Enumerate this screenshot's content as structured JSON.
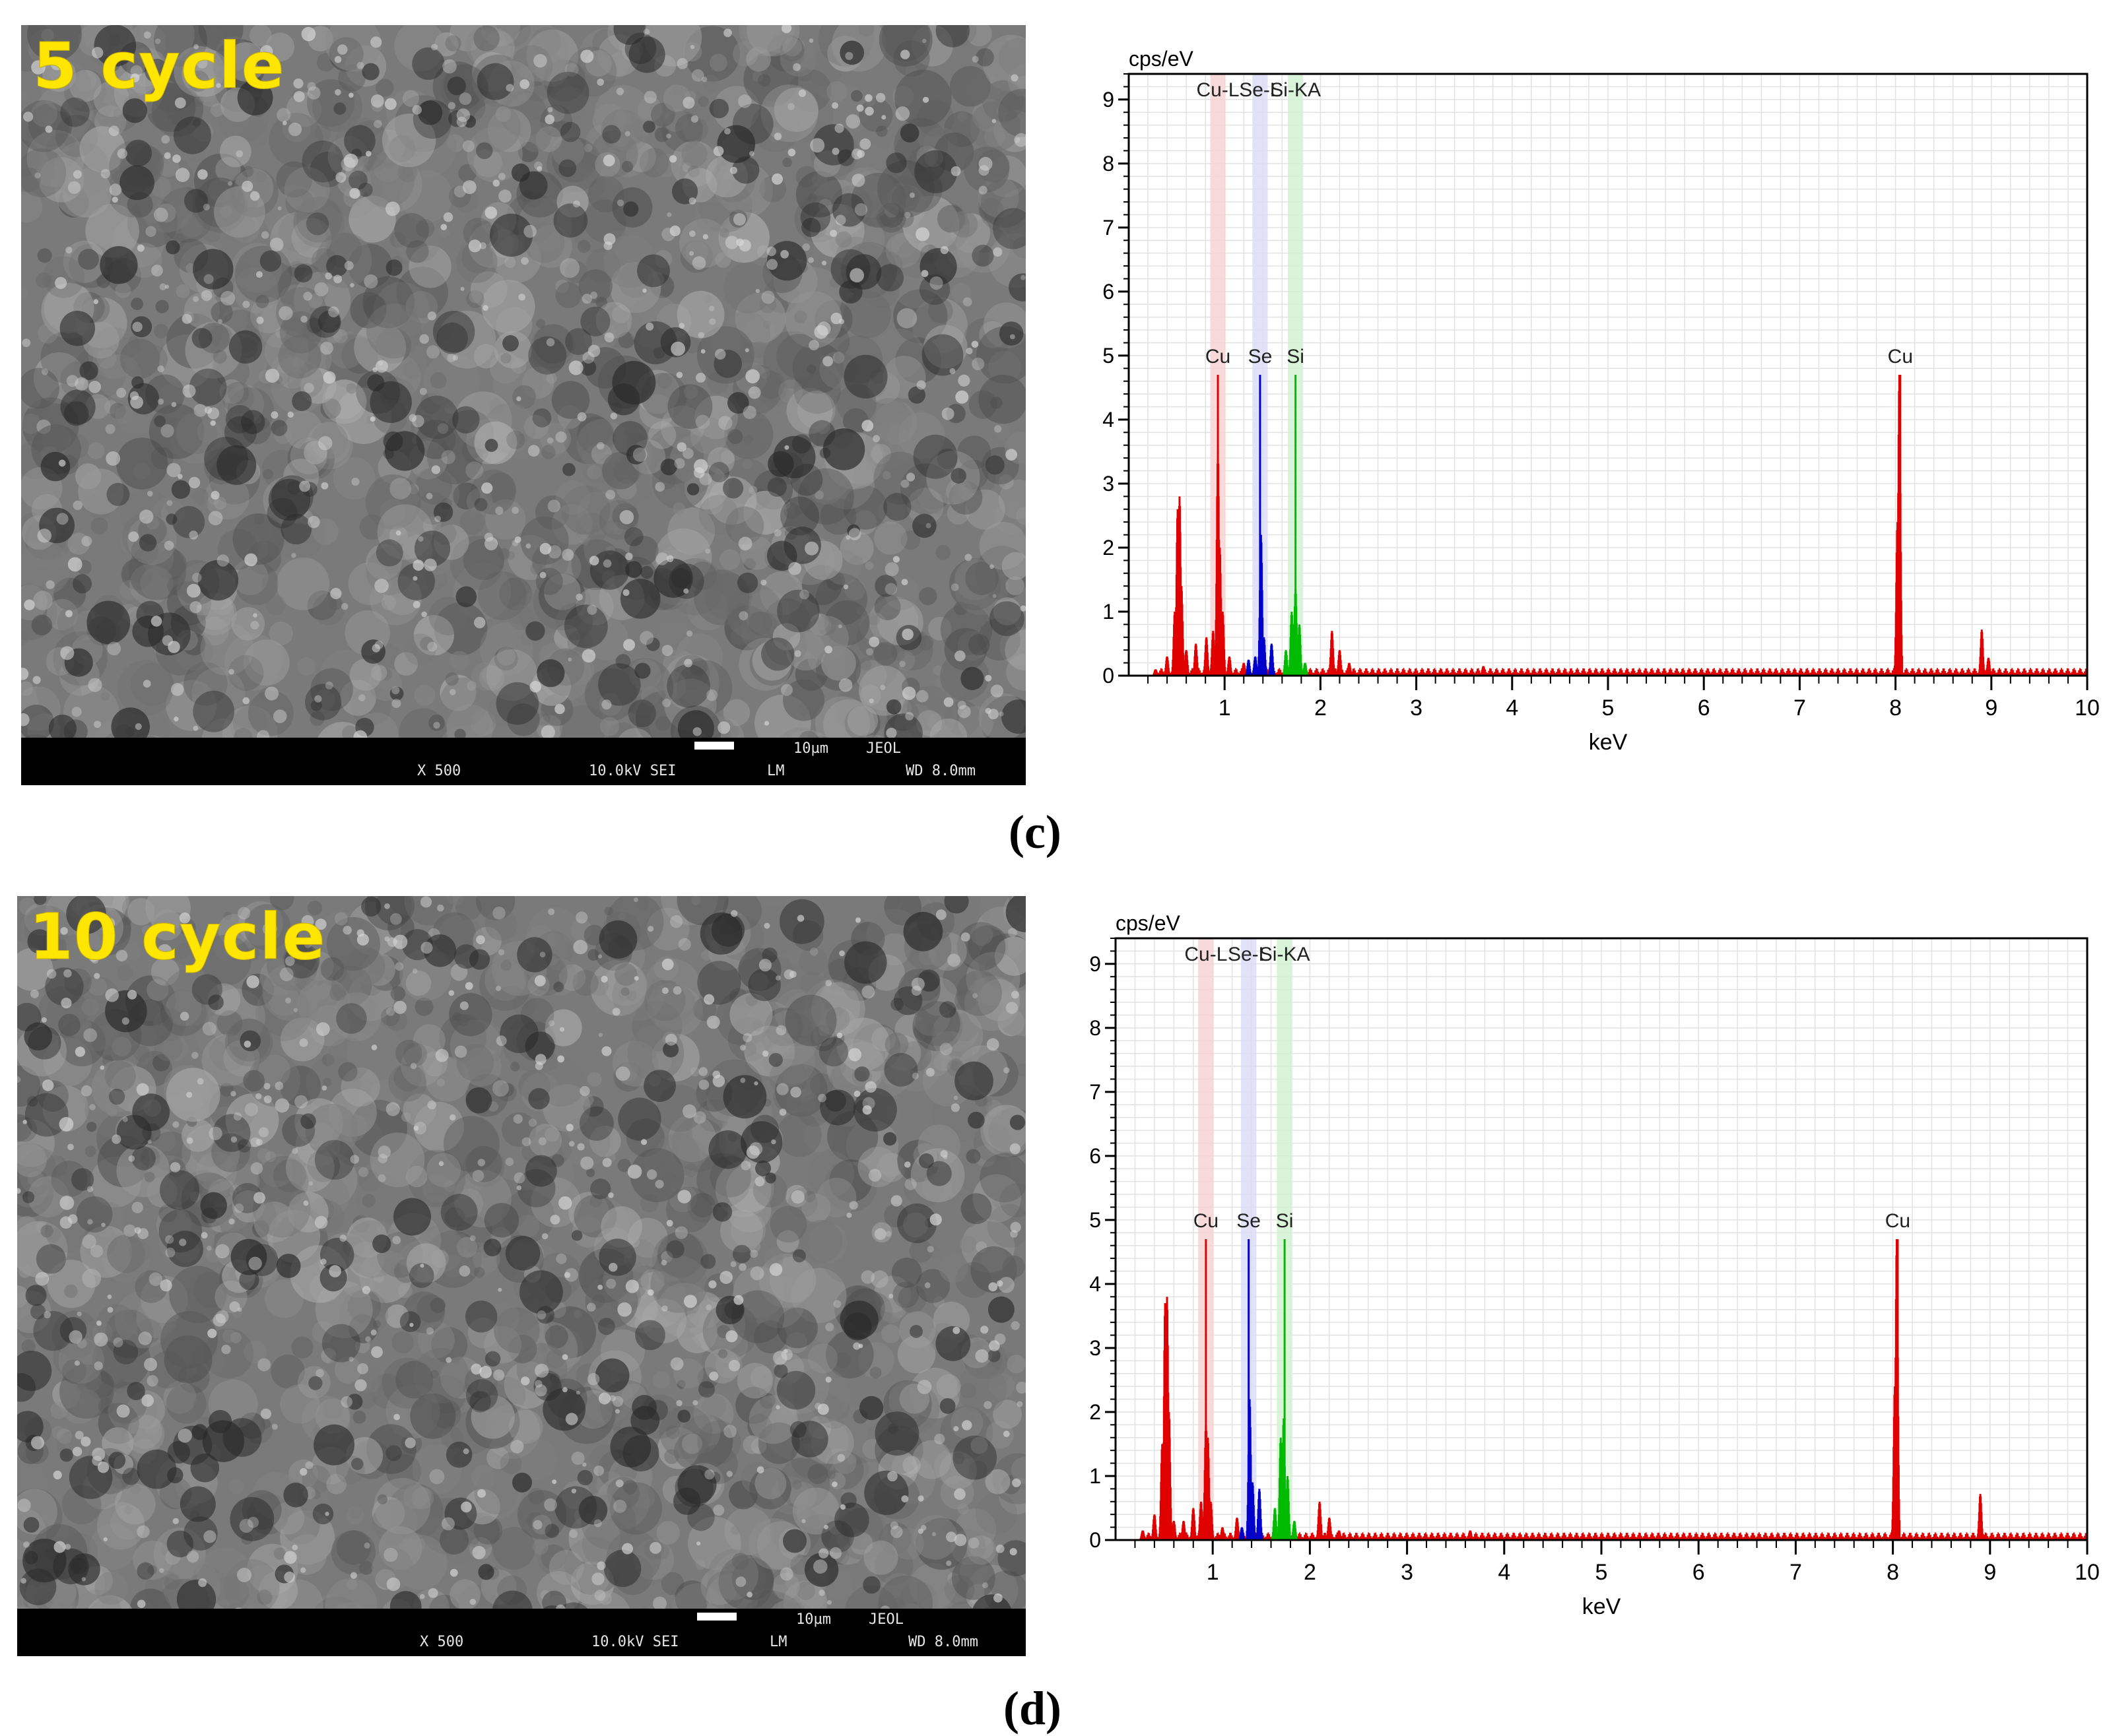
{
  "panels": [
    {
      "id": "c",
      "panel_label": "(c)",
      "sem": {
        "overlay_label": "5 cycle",
        "scale_text": "10µm",
        "brand": "JEOL",
        "magnification": "X 500",
        "voltage": "10.0kV SEI",
        "mode": "LM",
        "working_distance": "WD 8.0mm"
      }
    },
    {
      "id": "d",
      "panel_label": "(d)",
      "sem": {
        "overlay_label": "10 cycle",
        "scale_text": "10µm",
        "brand": "JEOL",
        "magnification": "X 500",
        "voltage": "10.0kV SEI",
        "mode": "LM",
        "working_distance": "WD 8.0mm"
      }
    }
  ],
  "chart_data": [
    {
      "type": "line",
      "panel": "c",
      "ylabel": "cps/eV",
      "xlabel": "keV",
      "xlim": [
        0,
        10
      ],
      "ylim": [
        0,
        9.4
      ],
      "x_ticks": [
        "1",
        "2",
        "3",
        "4",
        "5",
        "6",
        "7",
        "8",
        "9",
        "10"
      ],
      "y_ticks": [
        "0",
        "1",
        "2",
        "3",
        "4",
        "5",
        "6",
        "7",
        "8",
        "9"
      ],
      "grid": true,
      "colors": {
        "Cu": "#e00000",
        "Se": "#0000cc",
        "Si": "#00bb00",
        "Cu_band": "#f8d4d4",
        "Se_band": "#dcdcf6",
        "Si_band": "#d4f2d4"
      },
      "top_line_labels": [
        {
          "text": "Cu-L",
          "x": 0.93,
          "color": "Cu"
        },
        {
          "text": "Se-L",
          "x": 1.37,
          "color": "Se"
        },
        {
          "text": "Si-KA",
          "x": 1.74,
          "color": "Si"
        }
      ],
      "element_bands": [
        {
          "element": "Cu",
          "x0": 0.85,
          "x1": 1.01
        },
        {
          "element": "Se",
          "x0": 1.29,
          "x1": 1.45
        },
        {
          "element": "Si",
          "x0": 1.66,
          "x1": 1.82
        }
      ],
      "marker_lines": [
        {
          "label": "Cu",
          "x": 0.93,
          "y": 4.7,
          "color": "Cu"
        },
        {
          "label": "Se",
          "x": 1.37,
          "y": 4.7,
          "color": "Se"
        },
        {
          "label": "Si",
          "x": 1.74,
          "y": 4.7,
          "color": "Si"
        },
        {
          "label": "Cu",
          "x": 8.05,
          "y": 4.7,
          "color": "Cu"
        }
      ],
      "series": [
        {
          "name": "Cu",
          "color": "Cu",
          "peaks": [
            [
              0.28,
              0.1
            ],
            [
              0.4,
              0.3
            ],
            [
              0.48,
              1.0
            ],
            [
              0.51,
              2.6
            ],
            [
              0.53,
              2.8
            ],
            [
              0.55,
              1.4
            ],
            [
              0.6,
              0.4
            ],
            [
              0.7,
              0.5
            ],
            [
              0.81,
              0.6
            ],
            [
              0.88,
              0.7
            ],
            [
              0.93,
              3.5
            ],
            [
              0.95,
              2.0
            ],
            [
              0.98,
              1.0
            ],
            [
              1.05,
              0.3
            ],
            [
              1.2,
              0.2
            ],
            [
              2.12,
              0.7
            ],
            [
              2.2,
              0.4
            ],
            [
              2.3,
              0.2
            ],
            [
              3.7,
              0.15
            ],
            [
              8.02,
              2.4
            ],
            [
              8.04,
              4.7
            ],
            [
              8.9,
              0.72
            ],
            [
              8.97,
              0.28
            ]
          ],
          "baseline": 0.1
        },
        {
          "name": "Se",
          "color": "Se",
          "peaks": [
            [
              1.25,
              0.25
            ],
            [
              1.32,
              0.3
            ],
            [
              1.38,
              2.2
            ],
            [
              1.41,
              0.6
            ],
            [
              1.49,
              0.5
            ]
          ],
          "baseline": 0.0
        },
        {
          "name": "Si",
          "color": "Si",
          "peaks": [
            [
              1.64,
              0.4
            ],
            [
              1.7,
              1.0
            ],
            [
              1.74,
              1.35
            ],
            [
              1.78,
              0.8
            ],
            [
              1.84,
              0.2
            ]
          ],
          "baseline": 0.0
        }
      ]
    },
    {
      "type": "line",
      "panel": "d",
      "ylabel": "cps/eV",
      "xlabel": "keV",
      "xlim": [
        0,
        10
      ],
      "ylim": [
        0,
        9.4
      ],
      "x_ticks": [
        "1",
        "2",
        "3",
        "4",
        "5",
        "6",
        "7",
        "8",
        "9",
        "10"
      ],
      "y_ticks": [
        "0",
        "1",
        "2",
        "3",
        "4",
        "5",
        "6",
        "7",
        "8",
        "9"
      ],
      "grid": true,
      "colors": {
        "Cu": "#e00000",
        "Se": "#0000cc",
        "Si": "#00bb00",
        "Cu_band": "#f8d4d4",
        "Se_band": "#dcdcf6",
        "Si_band": "#d4f2d4"
      },
      "top_line_labels": [
        {
          "text": "Cu-L",
          "x": 0.93,
          "color": "Cu"
        },
        {
          "text": "Se-L",
          "x": 1.37,
          "color": "Se"
        },
        {
          "text": "Si-KA",
          "x": 1.74,
          "color": "Si"
        }
      ],
      "element_bands": [
        {
          "element": "Cu",
          "x0": 0.85,
          "x1": 1.01
        },
        {
          "element": "Se",
          "x0": 1.29,
          "x1": 1.45
        },
        {
          "element": "Si",
          "x0": 1.66,
          "x1": 1.82
        }
      ],
      "marker_lines": [
        {
          "label": "Cu",
          "x": 0.93,
          "y": 4.7,
          "color": "Cu"
        },
        {
          "label": "Se",
          "x": 1.37,
          "y": 4.7,
          "color": "Se"
        },
        {
          "label": "Si",
          "x": 1.74,
          "y": 4.7,
          "color": "Si"
        },
        {
          "label": "Cu",
          "x": 8.05,
          "y": 4.7,
          "color": "Cu"
        }
      ],
      "series": [
        {
          "name": "Cu",
          "color": "Cu",
          "peaks": [
            [
              0.28,
              0.15
            ],
            [
              0.4,
              0.4
            ],
            [
              0.48,
              1.5
            ],
            [
              0.51,
              3.7
            ],
            [
              0.53,
              3.8
            ],
            [
              0.55,
              2.0
            ],
            [
              0.6,
              0.3
            ],
            [
              0.7,
              0.3
            ],
            [
              0.8,
              0.5
            ],
            [
              0.88,
              0.6
            ],
            [
              0.93,
              1.8
            ],
            [
              0.95,
              1.6
            ],
            [
              0.98,
              0.6
            ],
            [
              1.1,
              0.2
            ],
            [
              1.25,
              0.35
            ],
            [
              2.1,
              0.6
            ],
            [
              2.2,
              0.35
            ],
            [
              2.3,
              0.15
            ],
            [
              3.65,
              0.15
            ],
            [
              8.02,
              2.4
            ],
            [
              8.04,
              4.7
            ],
            [
              8.9,
              0.72
            ]
          ],
          "baseline": 0.1
        },
        {
          "name": "Se",
          "color": "Se",
          "peaks": [
            [
              1.3,
              0.2
            ],
            [
              1.38,
              2.2
            ],
            [
              1.41,
              0.9
            ],
            [
              1.48,
              0.8
            ]
          ],
          "baseline": 0.0
        },
        {
          "name": "Si",
          "color": "Si",
          "peaks": [
            [
              1.64,
              0.5
            ],
            [
              1.7,
              1.6
            ],
            [
              1.73,
              1.9
            ],
            [
              1.77,
              1.0
            ],
            [
              1.84,
              0.3
            ]
          ],
          "baseline": 0.0
        }
      ]
    }
  ]
}
